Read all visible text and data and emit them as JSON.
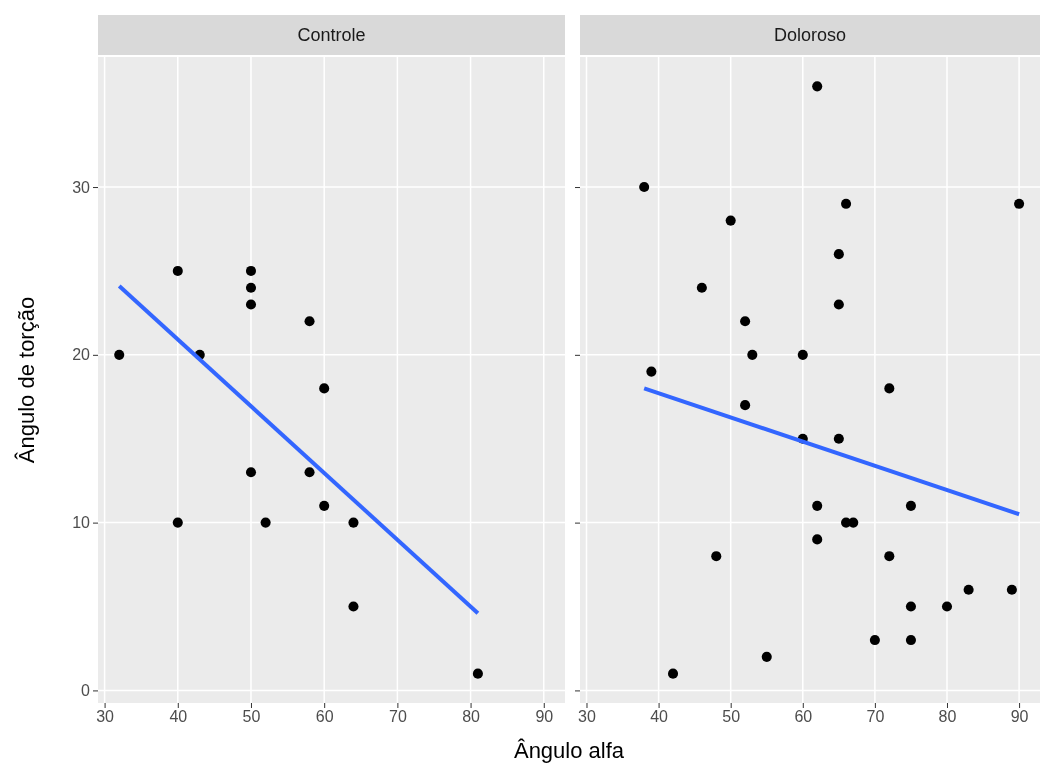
{
  "chart_data": [
    {
      "type": "scatter",
      "title": "Controle",
      "xlabel": "Ângulo alfa",
      "ylabel": "Ângulo de torção",
      "xlim": [
        29.1,
        92.9
      ],
      "ylim": [
        -0.75,
        37.75
      ],
      "xticks": [
        30,
        40,
        50,
        60,
        70,
        80,
        90
      ],
      "yticks": [
        0,
        10,
        20,
        30
      ],
      "grid": true,
      "series": [
        {
          "marker": "circle",
          "color": "#000000",
          "x": [
            32,
            40,
            40,
            43,
            50,
            50,
            50,
            50,
            52,
            58,
            58,
            60,
            60,
            64,
            64,
            81
          ],
          "values": [
            20,
            25,
            10,
            20,
            25,
            24,
            23,
            13,
            10,
            22,
            13,
            18,
            11,
            10,
            5,
            1
          ]
        },
        {
          "type": "line",
          "marker": "none",
          "color": "#3366ff",
          "x": [
            32,
            81
          ],
          "values": [
            24.1,
            4.6
          ]
        }
      ]
    },
    {
      "type": "scatter",
      "title": "Doloroso",
      "xlim": [
        29.1,
        92.9
      ],
      "ylim": [
        -0.75,
        37.75
      ],
      "xticks": [
        30,
        40,
        50,
        60,
        70,
        80,
        90
      ],
      "yticks": [
        0,
        10,
        20,
        30
      ],
      "tick_labels": "x",
      "grid": true,
      "series": [
        {
          "marker": "circle",
          "color": "#000000",
          "x": [
            38,
            39,
            42,
            46,
            48,
            50,
            52,
            52,
            53,
            55,
            60,
            60,
            62,
            62,
            62,
            65,
            65,
            65,
            66,
            66,
            67,
            70,
            72,
            72,
            75,
            75,
            75,
            80,
            83,
            89,
            90
          ],
          "values": [
            30,
            19,
            1,
            24,
            8,
            28,
            22,
            17,
            20,
            2,
            20,
            15,
            36,
            11,
            9,
            26,
            23,
            15,
            29,
            10,
            10,
            3,
            18,
            8,
            11,
            5,
            3,
            5,
            6,
            6,
            29
          ]
        },
        {
          "type": "line",
          "marker": "none",
          "color": "#3366ff",
          "x": [
            38,
            90
          ],
          "values": [
            18.0,
            10.5
          ]
        }
      ]
    }
  ]
}
